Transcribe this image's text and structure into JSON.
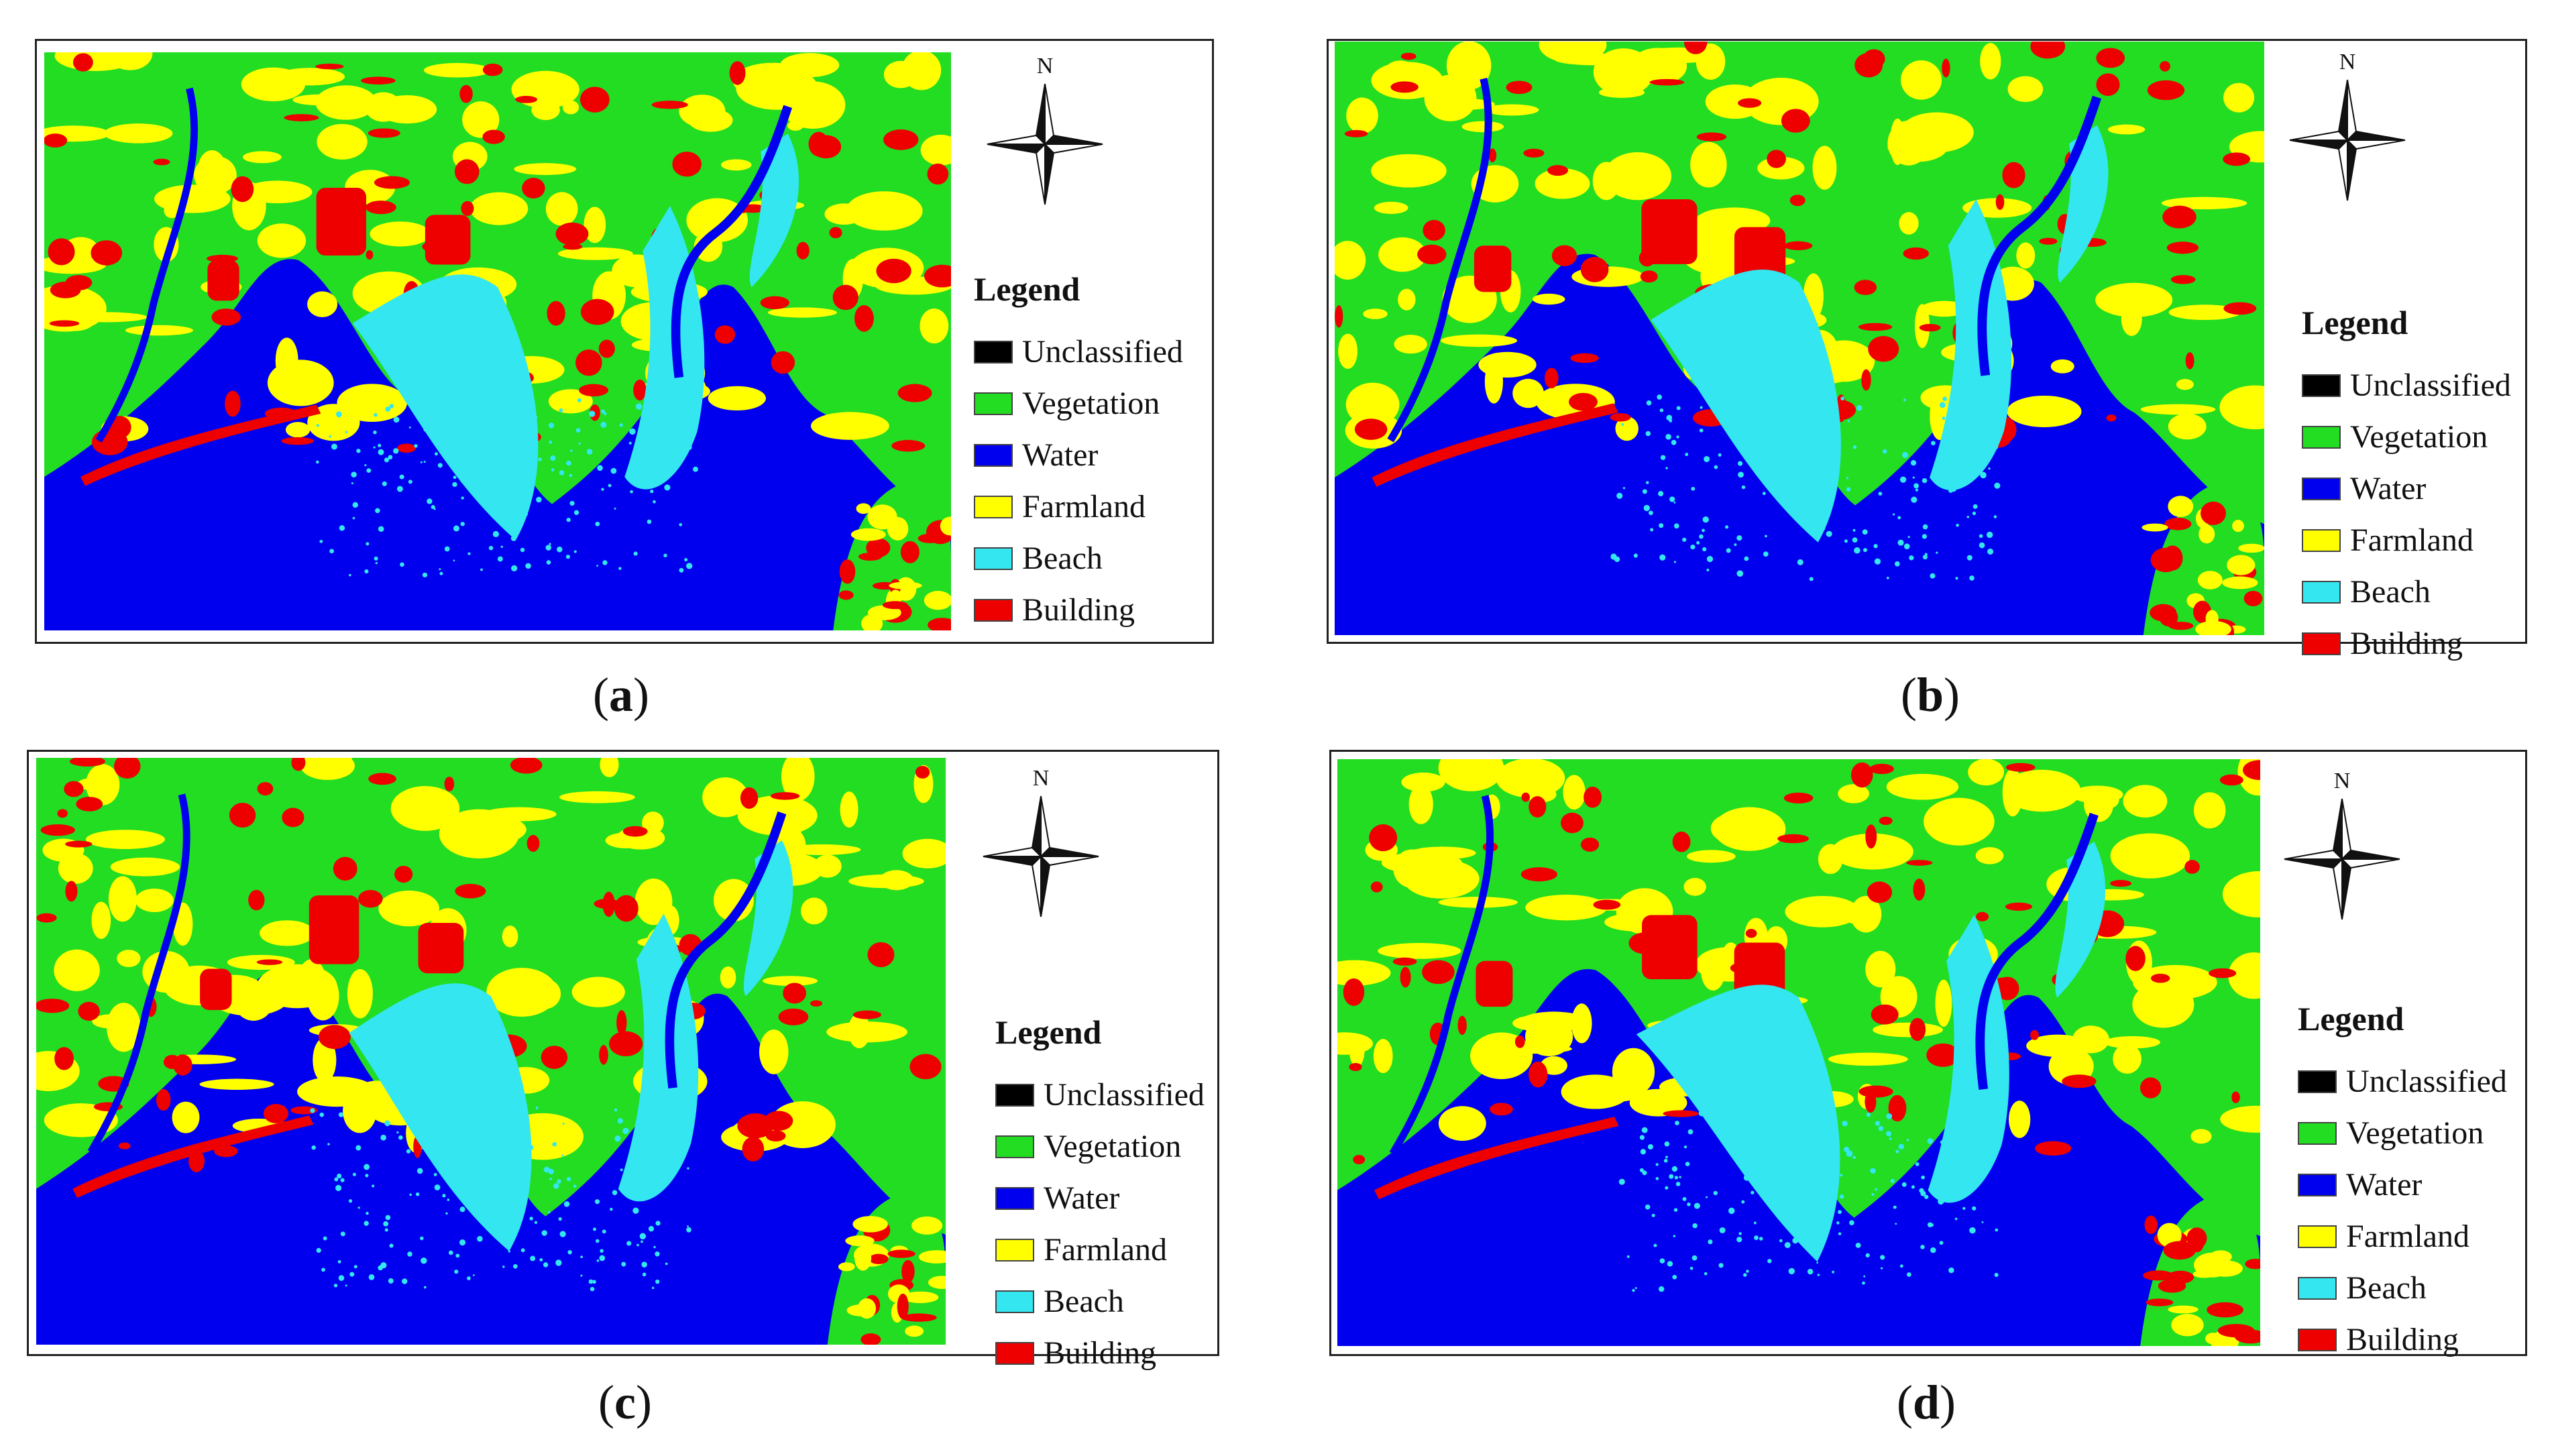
{
  "panels": [
    {
      "id": "a",
      "caption_open": "(",
      "caption_letter": "a",
      "caption_close": ")",
      "legend_title": "Legend",
      "north_label": "N",
      "legend_items": [
        {
          "label": "Unclassified",
          "color": "#000000"
        },
        {
          "label": "Vegetation",
          "color": "#22dd22"
        },
        {
          "label": "Water",
          "color": "#0000ee"
        },
        {
          "label": "Farmland",
          "color": "#ffff00"
        },
        {
          "label": "Beach",
          "color": "#33e6f0"
        },
        {
          "label": "Building",
          "color": "#ee0000"
        }
      ]
    },
    {
      "id": "b",
      "caption_open": "(",
      "caption_letter": "b",
      "caption_close": ")",
      "legend_title": "Legend",
      "north_label": "N",
      "legend_items": [
        {
          "label": "Unclassified",
          "color": "#000000"
        },
        {
          "label": "Vegetation",
          "color": "#22dd22"
        },
        {
          "label": "Water",
          "color": "#0000ee"
        },
        {
          "label": "Farmland",
          "color": "#ffff00"
        },
        {
          "label": "Beach",
          "color": "#33e6f0"
        },
        {
          "label": "Building",
          "color": "#ee0000"
        }
      ]
    },
    {
      "id": "c",
      "caption_open": "(",
      "caption_letter": "c",
      "caption_close": ")",
      "legend_title": "Legend",
      "north_label": "N",
      "legend_items": [
        {
          "label": "Unclassified",
          "color": "#000000"
        },
        {
          "label": "Vegetation",
          "color": "#22dd22"
        },
        {
          "label": "Water",
          "color": "#0000ee"
        },
        {
          "label": "Farmland",
          "color": "#ffff00"
        },
        {
          "label": "Beach",
          "color": "#33e6f0"
        },
        {
          "label": "Building",
          "color": "#ee0000"
        }
      ]
    },
    {
      "id": "d",
      "caption_open": "(",
      "caption_letter": "d",
      "caption_close": ")",
      "legend_title": "Legend",
      "north_label": "N",
      "legend_items": [
        {
          "label": "Unclassified",
          "color": "#000000"
        },
        {
          "label": "Vegetation",
          "color": "#22dd22"
        },
        {
          "label": "Water",
          "color": "#0000ee"
        },
        {
          "label": "Farmland",
          "color": "#ffff00"
        },
        {
          "label": "Beach",
          "color": "#33e6f0"
        },
        {
          "label": "Building",
          "color": "#ee0000"
        }
      ]
    }
  ]
}
